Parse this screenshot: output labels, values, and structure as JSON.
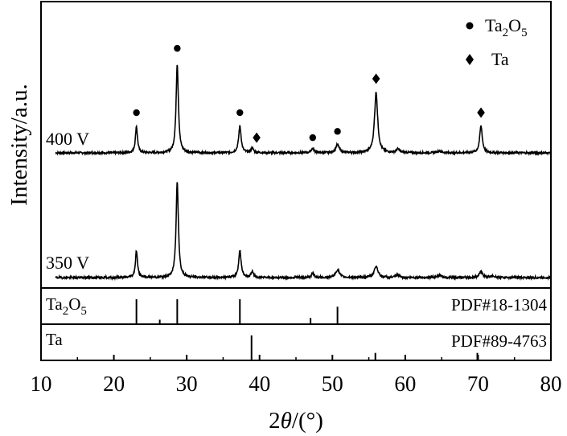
{
  "chart_data": {
    "type": "line",
    "xlabel": {
      "prefix": "2",
      "theta": "θ",
      "suffix": "/(°)"
    },
    "ylabel": "Intensity/a.u.",
    "xlim": [
      10,
      80
    ],
    "xticks": [
      "10",
      "20",
      "30",
      "40",
      "50",
      "60",
      "70",
      "80"
    ],
    "legend": {
      "placement": "top-right",
      "items": [
        {
          "marker": "circle",
          "base": "Ta",
          "sub": "2",
          "mid": "O",
          "sub2": "5"
        },
        {
          "marker": "diamond",
          "base": "Ta",
          "sub": "",
          "mid": "",
          "sub2": ""
        }
      ]
    },
    "series": [
      {
        "name": "400 V",
        "peaks": [
          {
            "x": 23.1,
            "h": 0.3,
            "w": 0.25
          },
          {
            "x": 28.7,
            "h": 1.0,
            "w": 0.28
          },
          {
            "x": 37.3,
            "h": 0.3,
            "w": 0.3
          },
          {
            "x": 39.0,
            "h": 0.05,
            "w": 0.3
          },
          {
            "x": 47.3,
            "h": 0.05,
            "w": 0.35
          },
          {
            "x": 50.7,
            "h": 0.09,
            "w": 0.45
          },
          {
            "x": 56.0,
            "h": 0.68,
            "w": 0.38
          },
          {
            "x": 59.0,
            "h": 0.04,
            "w": 0.4
          },
          {
            "x": 64.7,
            "h": 0.02,
            "w": 0.5
          },
          {
            "x": 70.4,
            "h": 0.3,
            "w": 0.32
          }
        ],
        "markers": [
          {
            "x": 23.1,
            "type": "circle",
            "h": 0.45
          },
          {
            "x": 28.7,
            "type": "circle",
            "h": 1.17
          },
          {
            "x": 37.3,
            "type": "circle",
            "h": 0.45
          },
          {
            "x": 39.6,
            "type": "diamond",
            "h": 0.17
          },
          {
            "x": 47.3,
            "type": "circle",
            "h": 0.17
          },
          {
            "x": 50.7,
            "type": "circle",
            "h": 0.24
          },
          {
            "x": 56.0,
            "type": "diamond",
            "h": 0.83
          },
          {
            "x": 70.4,
            "type": "diamond",
            "h": 0.45
          }
        ]
      },
      {
        "name": "350 V",
        "peaks": [
          {
            "x": 23.1,
            "h": 0.28,
            "w": 0.25
          },
          {
            "x": 28.7,
            "h": 1.0,
            "w": 0.28
          },
          {
            "x": 37.3,
            "h": 0.28,
            "w": 0.3
          },
          {
            "x": 39.0,
            "h": 0.06,
            "w": 0.3
          },
          {
            "x": 47.3,
            "h": 0.04,
            "w": 0.35
          },
          {
            "x": 50.7,
            "h": 0.08,
            "w": 0.45
          },
          {
            "x": 56.0,
            "h": 0.12,
            "w": 0.45
          },
          {
            "x": 59.0,
            "h": 0.03,
            "w": 0.4
          },
          {
            "x": 64.7,
            "h": 0.02,
            "w": 0.5
          },
          {
            "x": 70.4,
            "h": 0.06,
            "w": 0.4
          },
          {
            "x": 72.0,
            "h": 0.02,
            "w": 0.4
          }
        ]
      }
    ],
    "references": [
      {
        "phase": {
          "base": "Ta",
          "sub": "2",
          "mid": "O",
          "sub2": "5"
        },
        "pdf": "PDF#18-1304",
        "lines": [
          {
            "x": 23.1,
            "h": 1.0
          },
          {
            "x": 26.3,
            "h": 0.18
          },
          {
            "x": 28.7,
            "h": 1.0
          },
          {
            "x": 37.3,
            "h": 1.0
          },
          {
            "x": 47.0,
            "h": 0.25
          },
          {
            "x": 50.7,
            "h": 0.7
          }
        ]
      },
      {
        "phase": {
          "base": "Ta",
          "sub": "",
          "mid": "",
          "sub2": ""
        },
        "pdf": "PDF#89-4763",
        "lines": [
          {
            "x": 38.9,
            "h": 1.0
          },
          {
            "x": 55.9,
            "h": 0.3
          },
          {
            "x": 69.9,
            "h": 0.3
          }
        ]
      }
    ]
  }
}
